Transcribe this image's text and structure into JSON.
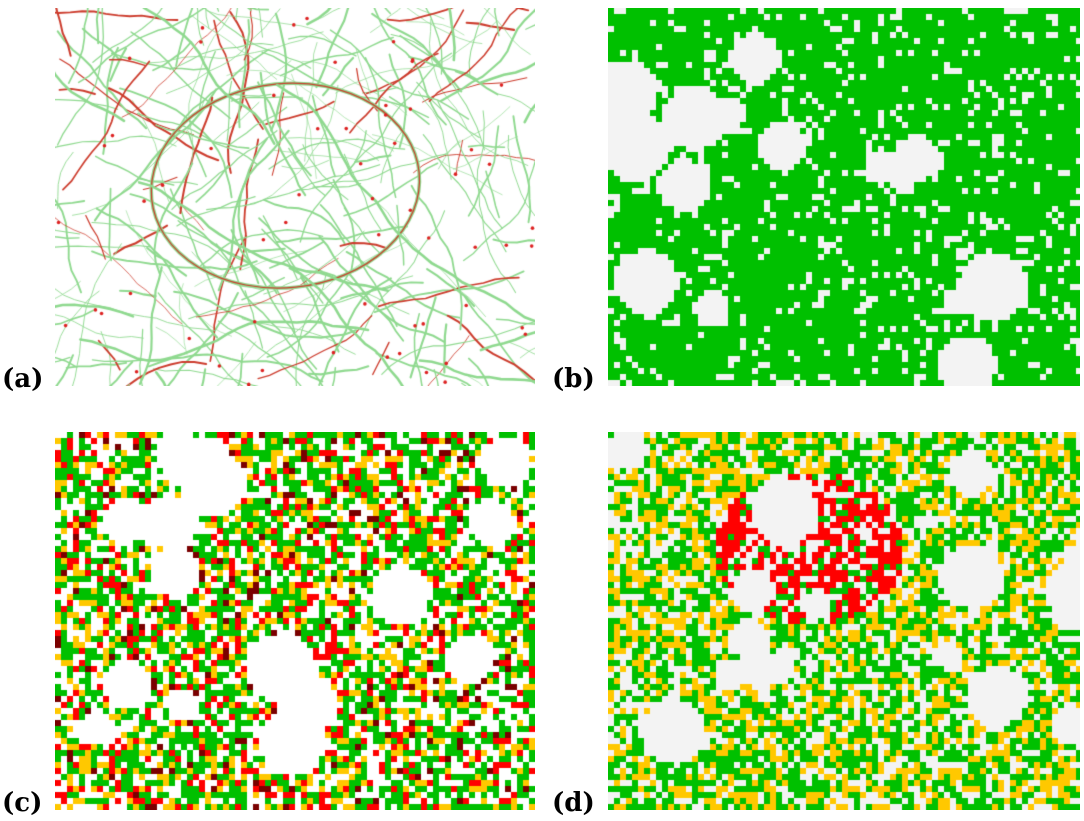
{
  "panels": [
    {
      "id": "a",
      "label": "(a)",
      "kind": "road-network"
    },
    {
      "id": "b",
      "label": "(b)",
      "kind": "grid"
    },
    {
      "id": "c",
      "label": "(c)",
      "kind": "grid"
    },
    {
      "id": "d",
      "label": "(d)",
      "kind": "grid"
    }
  ],
  "colors": {
    "road": "#8fd98f",
    "road_congested": "#cc3b2c",
    "incident": "#dd2222",
    "green": "#00c000",
    "yellow": "#ffc800",
    "red": "#ff0000",
    "dark_red": "#7a0000",
    "empty": "#f3f3f3"
  }
}
